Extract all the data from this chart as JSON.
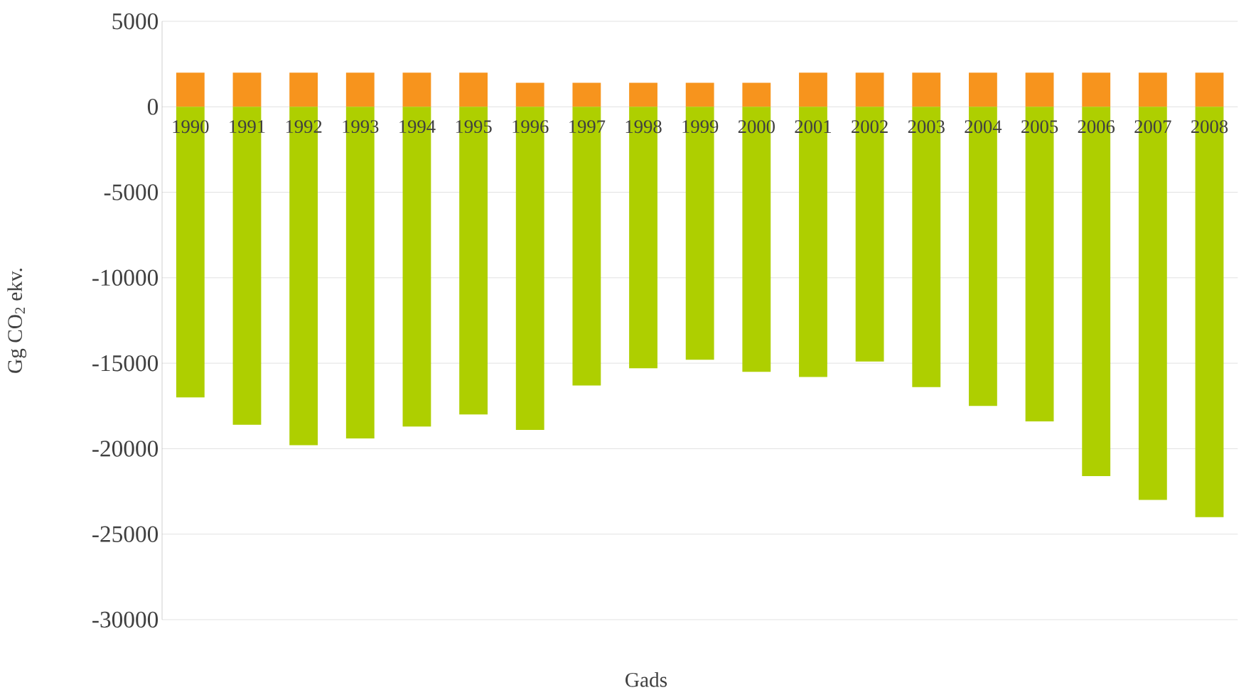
{
  "chart_data": {
    "type": "bar",
    "stacked": true,
    "xlabel": "Gads",
    "ylabel": "Gg CO$_{2}$ ekv.",
    "categories": [
      "1990",
      "1991",
      "1992",
      "1993",
      "1994",
      "1995",
      "1996",
      "1997",
      "1998",
      "1999",
      "2000",
      "2001",
      "2002",
      "2003",
      "2004",
      "2005",
      "2006",
      "2007",
      "2008"
    ],
    "series": [
      {
        "color": "#f7941d",
        "values": [
          2000,
          2000,
          2000,
          2000,
          2000,
          2000,
          1400,
          1400,
          1400,
          1400,
          1400,
          2000,
          2000,
          2000,
          2000,
          2000,
          2000,
          2000,
          2000
        ]
      },
      {
        "color": "#aecf00",
        "values": [
          -17000,
          -18600,
          -19800,
          -19400,
          -18700,
          -18000,
          -18900,
          -16300,
          -15300,
          -14800,
          -15500,
          -15800,
          -14900,
          -16400,
          -17500,
          -18400,
          -21600,
          -23000,
          -24000
        ]
      }
    ],
    "ylim": [
      -30000,
      5000
    ],
    "yticks": [
      5000,
      0,
      -5000,
      -10000,
      -15000,
      -20000,
      -25000,
      -30000
    ],
    "grid": "y"
  }
}
